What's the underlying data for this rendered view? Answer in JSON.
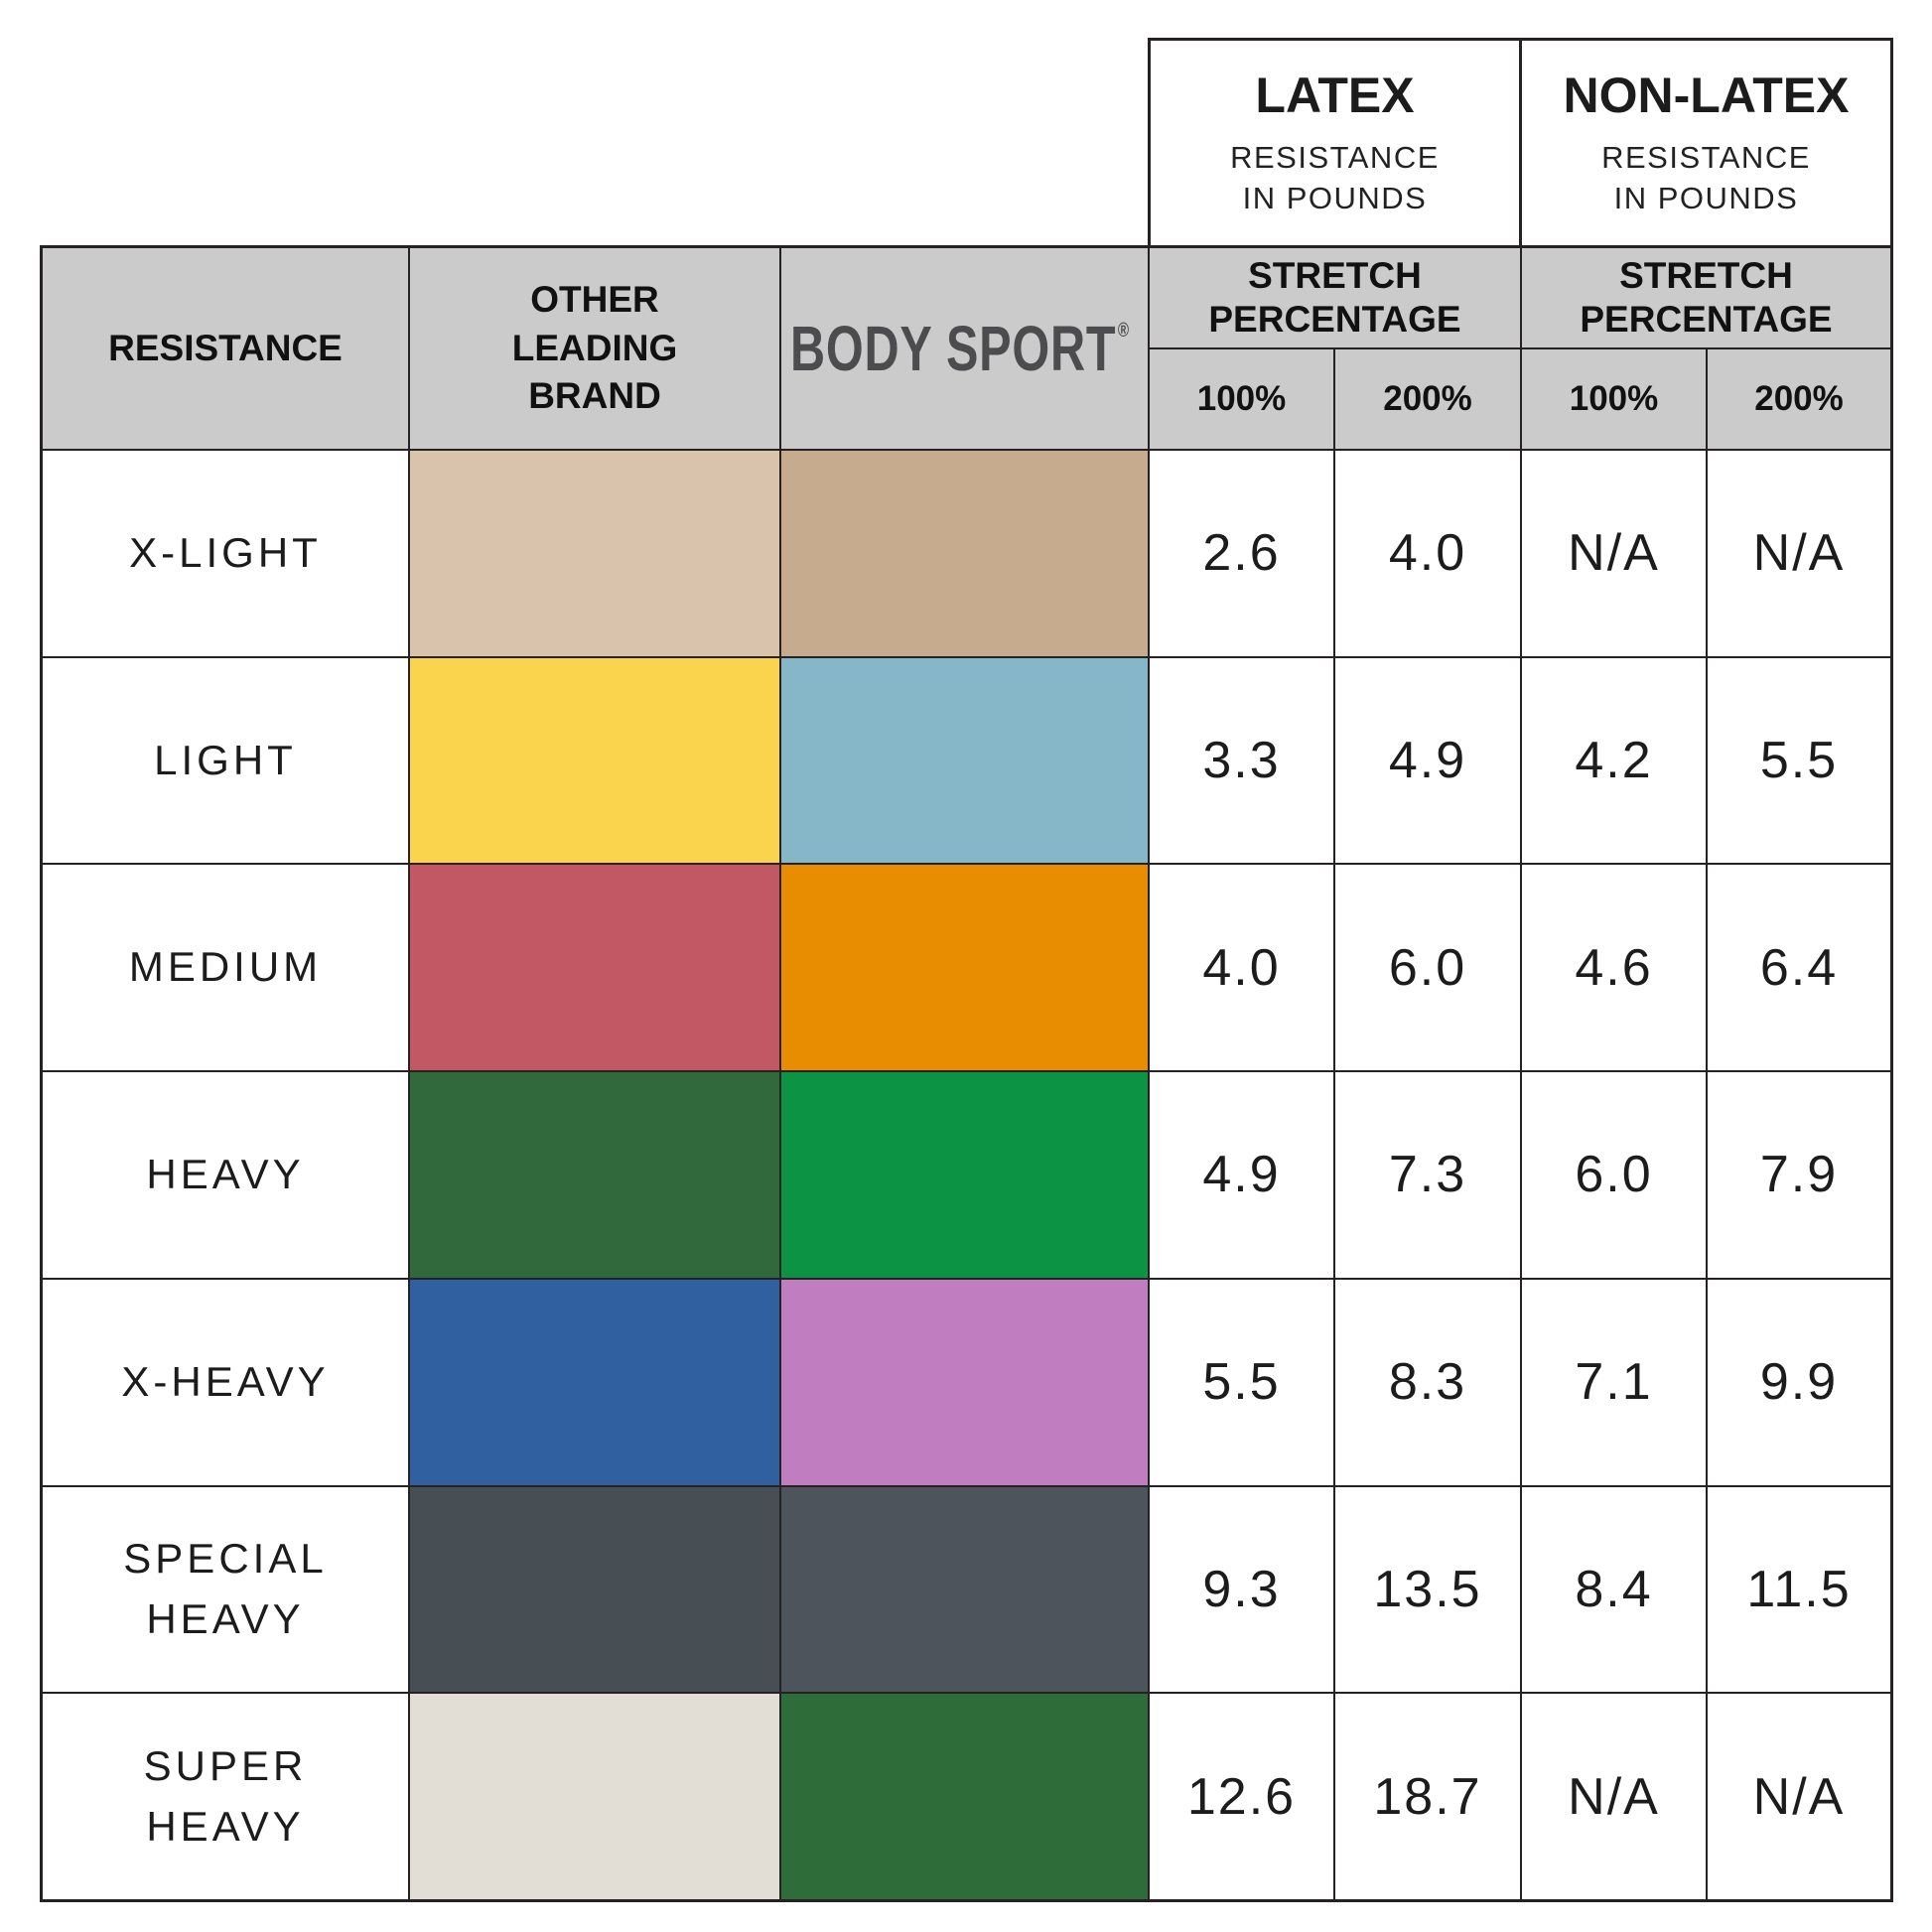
{
  "top": {
    "latex": {
      "title": "LATEX",
      "subtitle": "RESISTANCE\nIN POUNDS"
    },
    "non_latex": {
      "title": "NON-LATEX",
      "subtitle": "RESISTANCE\nIN POUNDS"
    }
  },
  "header": {
    "resistance": "RESISTANCE",
    "other_brand": "OTHER\nLEADING\nBRAND",
    "brand": {
      "initial": "B",
      "name": "BODY SPORT",
      "registered": "®"
    },
    "stretch_latex": "STRETCH\nPERCENTAGE",
    "stretch_non_latex": "STRETCH\nPERCENTAGE",
    "p100": "100%",
    "p200": "200%"
  },
  "rows": [
    {
      "label": "X-LIGHT",
      "other_color": "#d9c3ad",
      "bodysport_color": "#c7ab8e",
      "latex_100": "2.6",
      "latex_200": "4.0",
      "nonlatex_100": "N/A",
      "nonlatex_200": "N/A"
    },
    {
      "label": "LIGHT",
      "other_color": "#f9d44c",
      "bodysport_color": "#85b7c9",
      "latex_100": "3.3",
      "latex_200": "4.9",
      "nonlatex_100": "4.2",
      "nonlatex_200": "5.5"
    },
    {
      "label": "MEDIUM",
      "other_color": "#c25863",
      "bodysport_color": "#e88d02",
      "latex_100": "4.0",
      "latex_200": "6.0",
      "nonlatex_100": "4.6",
      "nonlatex_200": "6.4"
    },
    {
      "label": "HEAVY",
      "other_color": "#31693c",
      "bodysport_color": "#0c9344",
      "latex_100": "4.9",
      "latex_200": "7.3",
      "nonlatex_100": "6.0",
      "nonlatex_200": "7.9"
    },
    {
      "label": "X-HEAVY",
      "other_color": "#30609f",
      "bodysport_color": "#c07ec1",
      "latex_100": "5.5",
      "latex_200": "8.3",
      "nonlatex_100": "7.1",
      "nonlatex_200": "9.9"
    },
    {
      "label": "SPECIAL\nHEAVY",
      "other_color": "#474f55",
      "bodysport_color": "#4d545c",
      "latex_100": "9.3",
      "latex_200": "13.5",
      "nonlatex_100": "8.4",
      "nonlatex_200": "11.5"
    },
    {
      "label": "SUPER\nHEAVY",
      "other_color": "#e2ded5",
      "bodysport_color": "#2e6c3a",
      "latex_100": "12.6",
      "latex_200": "18.7",
      "nonlatex_100": "N/A",
      "nonlatex_200": "N/A"
    }
  ],
  "colors": {
    "grid_line": "#262223",
    "header_bg": "#cbcbcb",
    "logo_orange": "#e25b26",
    "wordmark_gray": "#4c4c4e"
  },
  "chart_data": {
    "type": "table",
    "title": "Resistance band comparison: Body Sport vs Other Leading Brand",
    "column_groups": [
      "LATEX RESISTANCE IN POUNDS",
      "NON-LATEX RESISTANCE IN POUNDS"
    ],
    "columns": [
      "RESISTANCE",
      "OTHER LEADING BRAND (color)",
      "BODY SPORT (color)",
      "LATEX STRETCH 100%",
      "LATEX STRETCH 200%",
      "NON-LATEX STRETCH 100%",
      "NON-LATEX STRETCH 200%"
    ],
    "rows": [
      [
        "X-LIGHT",
        "#d9c3ad",
        "#c7ab8e",
        2.6,
        4.0,
        null,
        null
      ],
      [
        "LIGHT",
        "#f9d44c",
        "#85b7c9",
        3.3,
        4.9,
        4.2,
        5.5
      ],
      [
        "MEDIUM",
        "#c25863",
        "#e88d02",
        4.0,
        6.0,
        4.6,
        6.4
      ],
      [
        "HEAVY",
        "#31693c",
        "#0c9344",
        4.9,
        7.3,
        6.0,
        7.9
      ],
      [
        "X-HEAVY",
        "#30609f",
        "#c07ec1",
        5.5,
        8.3,
        7.1,
        9.9
      ],
      [
        "SPECIAL HEAVY",
        "#474f55",
        "#4d545c",
        9.3,
        13.5,
        8.4,
        11.5
      ],
      [
        "SUPER HEAVY",
        "#e2ded5",
        "#2e6c3a",
        12.6,
        18.7,
        null,
        null
      ]
    ],
    "na_text": "N/A"
  }
}
